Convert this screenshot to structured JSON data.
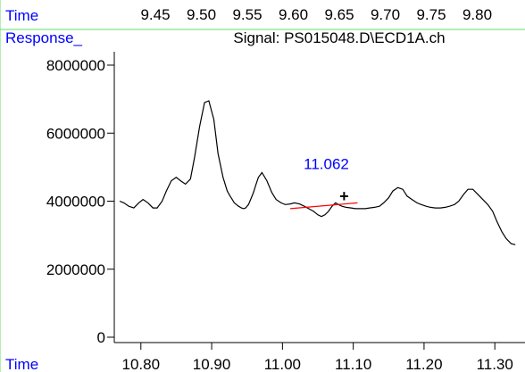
{
  "colors": {
    "label_blue": "#0000ff",
    "frame_green": "#66dd66",
    "signal": "#000000",
    "baseline": "#ff0000",
    "peak_label": "#0000ff"
  },
  "top_strip": {
    "time_label": "Time",
    "ticks": [
      "9.45",
      "9.50",
      "9.55",
      "9.60",
      "9.65",
      "9.70",
      "9.75",
      "9.80"
    ]
  },
  "panel": {
    "response_label": "Response_",
    "time_label": "Time"
  },
  "chart_data": {
    "type": "line",
    "title": "Signal: PS015048.D\\ECD1A.ch",
    "xlabel": "Time",
    "ylabel": "Response_",
    "xlim": [
      10.77,
      11.33
    ],
    "ylim": [
      0,
      8000000
    ],
    "x_ticks": [
      10.8,
      10.9,
      11.0,
      11.1,
      11.2,
      11.3
    ],
    "x_tick_labels": [
      "10.80",
      "10.90",
      "11.00",
      "11.10",
      "11.20",
      "11.30"
    ],
    "y_ticks": [
      0,
      2000000,
      4000000,
      6000000,
      8000000
    ],
    "y_tick_labels": [
      "0",
      "2000000",
      "4000000",
      "6000000",
      "8000000"
    ],
    "grid": false,
    "series": [
      {
        "x": [
          10.77,
          10.776,
          10.783,
          10.79,
          10.797,
          10.803,
          10.81,
          10.817,
          10.823,
          10.83,
          10.836,
          10.843,
          10.85,
          10.856,
          10.863,
          10.87,
          10.876,
          10.883,
          10.89,
          10.896,
          10.903,
          10.909,
          10.916,
          10.922,
          10.926,
          10.929,
          10.932,
          10.935,
          10.938,
          10.942,
          10.945,
          10.948,
          10.952,
          10.955,
          10.959,
          10.962,
          10.966,
          10.971,
          10.978,
          10.985,
          10.991,
          10.998,
          11.004,
          11.011,
          11.017,
          11.024,
          11.031,
          11.037,
          11.044,
          11.05,
          11.055,
          11.06,
          11.065,
          11.07,
          11.075,
          11.079,
          11.084,
          11.09,
          11.097,
          11.103,
          11.11,
          11.117,
          11.123,
          11.13,
          11.137,
          11.143,
          11.15,
          11.156,
          11.163,
          11.17,
          11.176,
          11.183,
          11.19,
          11.196,
          11.203,
          11.209,
          11.216,
          11.223,
          11.23,
          11.236,
          11.243,
          11.249,
          11.256,
          11.262,
          11.269,
          11.276,
          11.283,
          11.29,
          11.297,
          11.303,
          11.31,
          11.316,
          11.323,
          11.329
        ],
        "y": [
          4000000,
          3950000,
          3850000,
          3800000,
          3950000,
          4050000,
          3950000,
          3800000,
          3800000,
          4000000,
          4300000,
          4600000,
          4700000,
          4600000,
          4500000,
          4650000,
          5300000,
          6200000,
          6900000,
          6950000,
          6400000,
          5400000,
          4700000,
          4300000,
          4150000,
          4050000,
          3950000,
          3900000,
          3850000,
          3800000,
          3780000,
          3800000,
          3900000,
          4050000,
          4250000,
          4450000,
          4700000,
          4840000,
          4600000,
          4250000,
          4050000,
          3950000,
          3900000,
          3920000,
          3950000,
          3920000,
          3850000,
          3780000,
          3700000,
          3600000,
          3550000,
          3600000,
          3700000,
          3850000,
          3950000,
          3900000,
          3850000,
          3820000,
          3800000,
          3780000,
          3780000,
          3780000,
          3800000,
          3820000,
          3850000,
          3950000,
          4100000,
          4300000,
          4400000,
          4350000,
          4150000,
          4050000,
          3950000,
          3900000,
          3850000,
          3820000,
          3800000,
          3800000,
          3820000,
          3850000,
          3900000,
          4000000,
          4200000,
          4350000,
          4350000,
          4200000,
          4050000,
          3900000,
          3700000,
          3400000,
          3100000,
          2900000,
          2750000,
          2720000
        ]
      }
    ],
    "annotations": [
      {
        "type": "peak_label",
        "text": "11.062",
        "x": 11.062,
        "y": 4950000
      },
      {
        "type": "marker",
        "text": "+",
        "x": 11.087,
        "y": 4150000
      },
      {
        "type": "baseline",
        "x1": 11.011,
        "y1": 3780000,
        "x2": 11.106,
        "y2": 3950000
      }
    ]
  }
}
